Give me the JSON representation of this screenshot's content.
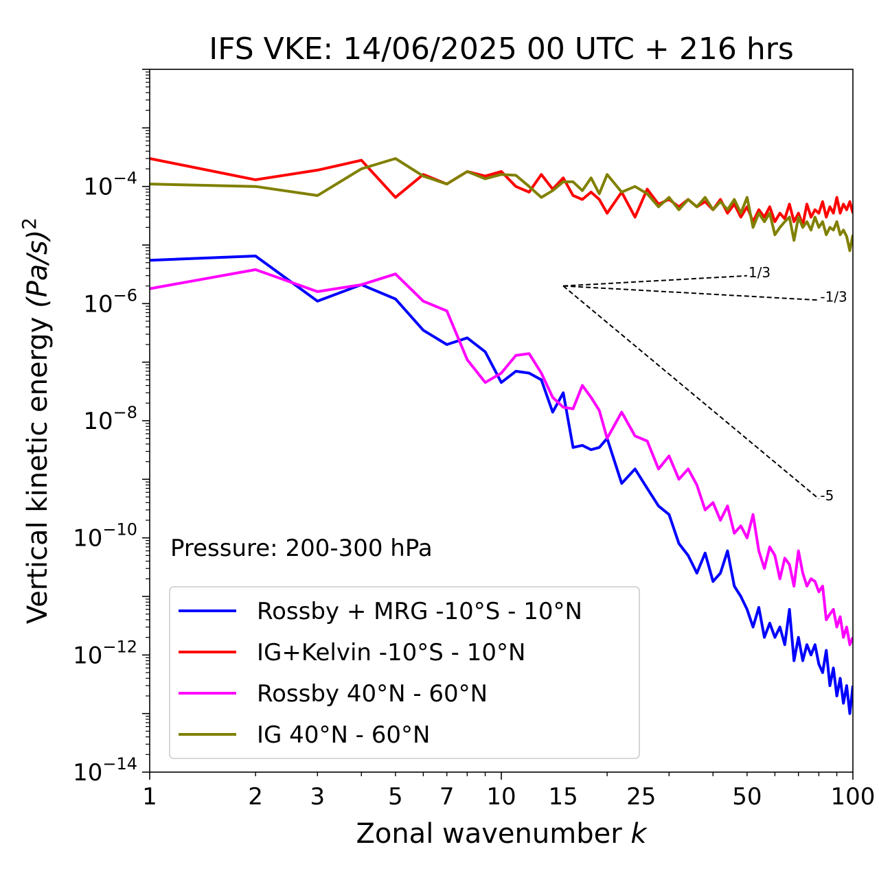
{
  "chart_data": {
    "type": "line",
    "title": "IFS VKE: 14/06/2025 00 UTC + 216 hrs",
    "xlabel": "Zonal wavenumber",
    "xlabel_var": "k",
    "ylabel": "Vertical kinetic energy",
    "ylabel_units": "(Pa/s)",
    "ylabel_power": "2",
    "xscale": "log",
    "yscale": "log",
    "xlim": [
      1,
      100
    ],
    "ylim": [
      1e-14,
      0.01
    ],
    "xticks": [
      1,
      2,
      3,
      5,
      7,
      10,
      15,
      25,
      50,
      100
    ],
    "xtick_labels": [
      "1",
      "2",
      "3",
      "5",
      "7",
      "10",
      "15",
      "25",
      "50",
      "100"
    ],
    "yticks": [
      {
        "value": 0.0001,
        "base": "10",
        "exp": "−4"
      },
      {
        "value": 1e-06,
        "base": "10",
        "exp": "−6"
      },
      {
        "value": 1e-08,
        "base": "10",
        "exp": "−8"
      },
      {
        "value": 1e-10,
        "base": "10",
        "exp": "−10"
      },
      {
        "value": 1e-12,
        "base": "10",
        "exp": "−12"
      },
      {
        "value": 1e-14,
        "base": "10",
        "exp": "−14"
      }
    ],
    "annotation": "Pressure: 200-300 hPa",
    "legend_position": "lower-left",
    "series": [
      {
        "name": "Rossby + MRG -10°S - 10°N",
        "color": "#0000ff",
        "x": [
          1,
          2,
          3,
          4,
          5,
          6,
          7,
          8,
          9,
          10,
          11,
          12,
          13,
          14,
          15,
          16,
          17,
          18,
          19,
          20,
          22,
          24,
          26,
          28,
          30,
          32,
          34,
          36,
          38,
          40,
          42,
          44,
          46,
          48,
          50,
          52,
          54,
          56,
          58,
          60,
          62,
          64,
          66,
          68,
          70,
          72,
          74,
          76,
          78,
          80,
          82,
          84,
          86,
          88,
          90,
          92,
          94,
          96,
          98,
          100
        ],
        "y": [
          5.5e-06,
          6.5e-06,
          1.1e-06,
          2.1e-06,
          1.2e-06,
          3.5e-07,
          2e-07,
          2.6e-07,
          1.5e-07,
          4.5e-08,
          7e-08,
          6.5e-08,
          5e-08,
          1.4e-08,
          3e-08,
          3.5e-09,
          3.8e-09,
          3.2e-09,
          3.5e-09,
          5e-09,
          8.5e-10,
          1.5e-09,
          7e-10,
          3.5e-10,
          2.5e-10,
          8e-11,
          5e-11,
          2.5e-11,
          5.5e-11,
          1.8e-11,
          2.5e-11,
          6e-11,
          1.5e-11,
          1e-11,
          6e-12,
          3e-12,
          6.5e-12,
          2e-12,
          3.5e-12,
          2e-12,
          3e-12,
          1.5e-12,
          6e-12,
          8e-13,
          2e-12,
          8e-13,
          1.5e-12,
          1e-12,
          1.5e-12,
          7e-13,
          5e-13,
          1.2e-12,
          3e-13,
          6e-13,
          2e-13,
          4e-13,
          1.5e-13,
          3e-13,
          1e-13,
          3e-13
        ]
      },
      {
        "name": "IG+Kelvin -10°S - 10°N",
        "color": "#ff0000",
        "x": [
          1,
          2,
          3,
          4,
          5,
          6,
          7,
          8,
          9,
          10,
          11,
          12,
          13,
          14,
          15,
          16,
          17,
          18,
          19,
          20,
          22,
          24,
          26,
          28,
          30,
          32,
          34,
          36,
          38,
          40,
          42,
          44,
          46,
          48,
          50,
          52,
          54,
          56,
          58,
          60,
          62,
          64,
          66,
          68,
          70,
          72,
          74,
          76,
          78,
          80,
          82,
          84,
          86,
          88,
          90,
          92,
          94,
          96,
          98,
          100
        ],
        "y": [
          0.0003,
          0.00013,
          0.00019,
          0.00028,
          6.5e-05,
          0.00016,
          0.00011,
          0.00018,
          0.00015,
          0.00018,
          0.0001,
          8e-05,
          0.00016,
          9e-05,
          0.00014,
          7e-05,
          6e-05,
          8e-05,
          6e-05,
          3.5e-05,
          8e-05,
          3e-05,
          9e-05,
          5e-05,
          6e-05,
          4.5e-05,
          6e-05,
          4.5e-05,
          5.5e-05,
          4e-05,
          6e-05,
          3.5e-05,
          5e-05,
          3e-05,
          4.5e-05,
          2.5e-05,
          4e-05,
          3e-05,
          4.5e-05,
          2.5e-05,
          3.5e-05,
          2.8e-05,
          5e-05,
          2.5e-05,
          3.5e-05,
          2.2e-05,
          5e-05,
          3e-05,
          4e-05,
          3.5e-05,
          5.5e-05,
          3e-05,
          4.5e-05,
          3.5e-05,
          6.5e-05,
          3.5e-05,
          5e-05,
          4e-05,
          5.5e-05,
          3.5e-05
        ]
      },
      {
        "name": "Rossby 40°N - 60°N",
        "color": "#ff00ff",
        "x": [
          1,
          2,
          3,
          4,
          5,
          6,
          7,
          8,
          9,
          10,
          11,
          12,
          13,
          14,
          15,
          16,
          17,
          18,
          19,
          20,
          22,
          24,
          26,
          28,
          30,
          32,
          34,
          36,
          38,
          40,
          42,
          44,
          46,
          48,
          50,
          52,
          54,
          56,
          58,
          60,
          62,
          64,
          66,
          68,
          70,
          72,
          74,
          76,
          78,
          80,
          82,
          84,
          86,
          88,
          90,
          92,
          94,
          96,
          98,
          100
        ],
        "y": [
          1.8e-06,
          3.8e-06,
          1.6e-06,
          2.1e-06,
          3.2e-06,
          1.1e-06,
          7.5e-07,
          1.1e-07,
          4.5e-08,
          6.5e-08,
          1.3e-07,
          1.4e-07,
          6.5e-08,
          2.5e-08,
          1.7e-08,
          1.6e-08,
          4e-08,
          2.5e-08,
          1.5e-08,
          5e-09,
          1.4e-08,
          5.5e-09,
          4.5e-09,
          1.5e-09,
          2.5e-09,
          1e-09,
          1.5e-09,
          8e-10,
          3e-10,
          4e-10,
          2e-10,
          3.5e-10,
          1.2e-10,
          1.6e-10,
          1e-10,
          2.5e-10,
          6e-11,
          3e-11,
          7e-11,
          5e-11,
          2e-11,
          4.5e-11,
          3.5e-11,
          1.5e-11,
          6e-11,
          2.5e-11,
          1.5e-11,
          2e-11,
          1.8e-11,
          1.2e-11,
          1.5e-11,
          4e-12,
          5e-12,
          6e-12,
          3e-12,
          4.5e-12,
          2e-12,
          3e-12,
          1.5e-12,
          2e-12
        ]
      },
      {
        "name": "IG 40°N - 60°N",
        "color": "#808000",
        "x": [
          1,
          2,
          3,
          4,
          5,
          6,
          7,
          8,
          9,
          10,
          11,
          12,
          13,
          14,
          15,
          16,
          17,
          18,
          19,
          20,
          22,
          24,
          26,
          28,
          30,
          32,
          34,
          36,
          38,
          40,
          42,
          44,
          46,
          48,
          50,
          52,
          54,
          56,
          58,
          60,
          62,
          64,
          66,
          68,
          70,
          72,
          74,
          76,
          78,
          80,
          82,
          84,
          86,
          88,
          90,
          92,
          94,
          96,
          98,
          100
        ],
        "y": [
          0.00011,
          0.0001,
          7e-05,
          0.0002,
          0.0003,
          0.00015,
          0.00011,
          0.00018,
          0.000135,
          0.00016,
          0.000155,
          0.0001,
          6.5e-05,
          8.5e-05,
          0.00012,
          0.00012,
          8.5e-05,
          0.00014,
          7.5e-05,
          0.00016,
          8e-05,
          0.0001,
          7.5e-05,
          4.5e-05,
          6.5e-05,
          4e-05,
          6e-05,
          4.5e-05,
          6.5e-05,
          4e-05,
          5.5e-05,
          4e-05,
          6e-05,
          3.5e-05,
          6.5e-05,
          2e-05,
          3.5e-05,
          2.5e-05,
          3.5e-05,
          1.5e-05,
          2e-05,
          2.5e-05,
          3e-05,
          1.2e-05,
          3e-05,
          2e-05,
          2.5e-05,
          1.8e-05,
          3e-05,
          2e-05,
          2.5e-05,
          1.5e-05,
          2e-05,
          1.8e-05,
          2.5e-05,
          1.5e-05,
          1.8e-05,
          1.4e-05,
          8e-06,
          1.5e-05
        ]
      }
    ],
    "reference_lines": [
      {
        "label": "1/3",
        "slope": 0.3333,
        "x0": 15,
        "y0": 2e-06,
        "x1": 50
      },
      {
        "label": "-1/3",
        "slope": -0.3333,
        "x0": 15,
        "y0": 2e-06,
        "x1": 80
      },
      {
        "label": "-5",
        "slope": -5,
        "x0": 15,
        "y0": 2e-06,
        "x1": 80
      }
    ]
  }
}
